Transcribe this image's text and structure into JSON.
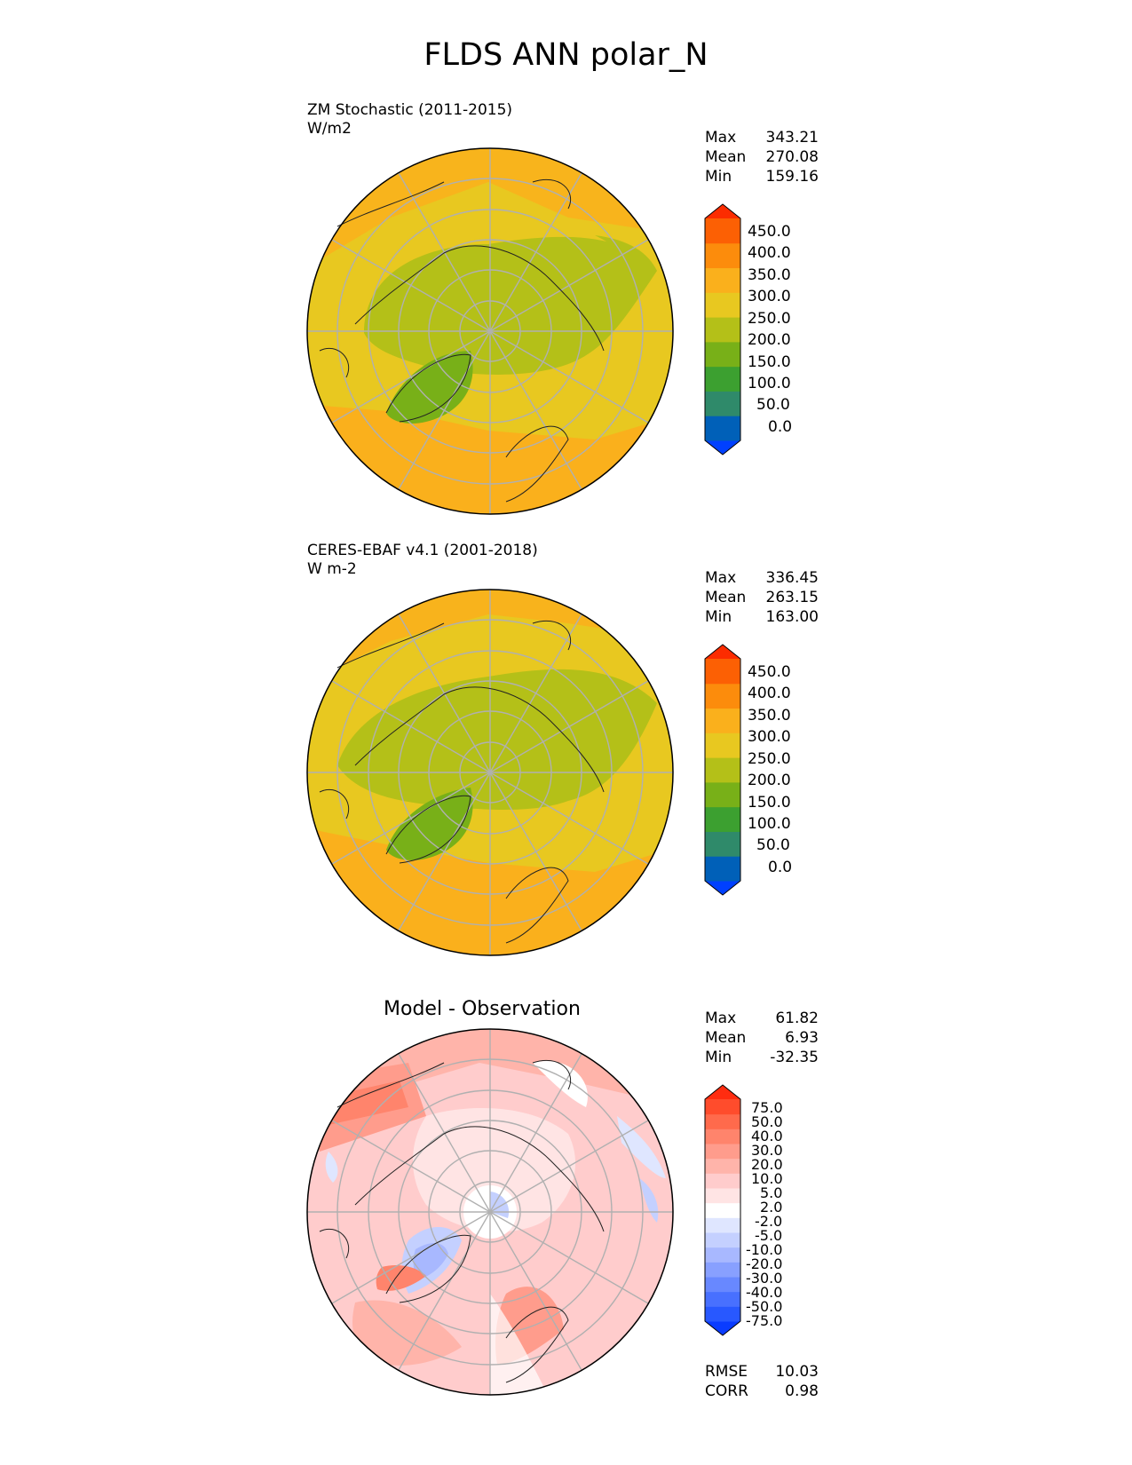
{
  "title": "FLDS ANN polar_N",
  "panels": [
    {
      "title_line1": "ZM Stochastic (2011-2015)",
      "title_line2": "W/m2",
      "stats": [
        [
          "Max",
          "343.21"
        ],
        [
          "Mean",
          "270.08"
        ],
        [
          "Min",
          "159.16"
        ]
      ],
      "colorbar_ticks": [
        "450.0",
        "400.0",
        "350.0",
        "300.0",
        "250.0",
        "200.0",
        "150.0",
        "100.0",
        "50.0",
        "0.0"
      ],
      "colors": [
        "#0040ff",
        "#0060b8",
        "#2f8a6a",
        "#3ca030",
        "#78b018",
        "#b4c018",
        "#e8c820",
        "#fab01c",
        "#fc8c0c",
        "#fc6004",
        "#fc2c00"
      ]
    },
    {
      "title_line1": "CERES-EBAF v4.1 (2001-2018)",
      "title_line2": "W m-2",
      "stats": [
        [
          "Max",
          "336.45"
        ],
        [
          "Mean",
          "263.15"
        ],
        [
          "Min",
          "163.00"
        ]
      ],
      "colorbar_ticks": [
        "450.0",
        "400.0",
        "350.0",
        "300.0",
        "250.0",
        "200.0",
        "150.0",
        "100.0",
        "50.0",
        "0.0"
      ],
      "colors": [
        "#0040ff",
        "#0060b8",
        "#2f8a6a",
        "#3ca030",
        "#78b018",
        "#b4c018",
        "#e8c820",
        "#fab01c",
        "#fc8c0c",
        "#fc6004",
        "#fc2c00"
      ]
    },
    {
      "title": "Model - Observation",
      "stats": [
        [
          "Max",
          "61.82"
        ],
        [
          "Mean",
          "6.93"
        ],
        [
          "Min",
          "-32.35"
        ]
      ],
      "colorbar_ticks": [
        "75.0",
        "50.0",
        "40.0",
        "30.0",
        "20.0",
        "10.0",
        "5.0",
        "2.0",
        "-2.0",
        "-5.0",
        "-10.0",
        "-20.0",
        "-30.0",
        "-40.0",
        "-50.0",
        "-75.0"
      ],
      "colors": [
        "#0a3cff",
        "#2858ff",
        "#4870ff",
        "#6888ff",
        "#88a0ff",
        "#a8b8ff",
        "#c4d0ff",
        "#dfe6ff",
        "#ffffff",
        "#ffe4e4",
        "#ffcccc",
        "#ffb4aa",
        "#ff9c8c",
        "#ff846c",
        "#ff6a4c",
        "#ff4c2c",
        "#ff2c10"
      ],
      "bottom_stats": [
        [
          "RMSE",
          "10.03"
        ],
        [
          "CORR",
          "0.98"
        ]
      ]
    }
  ]
}
